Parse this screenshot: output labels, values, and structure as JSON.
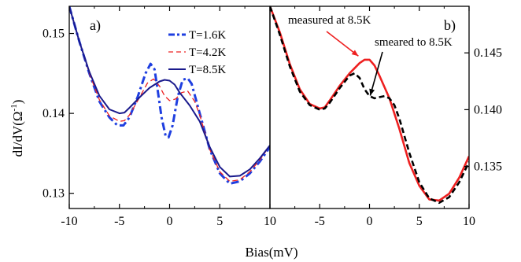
{
  "figure": {
    "xlabel": "Bias(mV)",
    "ylabel": "dI/dV(Ω",
    "ylabel_sup": "-1",
    "ylabel_close": ")"
  },
  "chart_data": [
    {
      "type": "line",
      "panel_label": "a)",
      "xlabel": "Bias(mV)",
      "ylabel": "dI/dV(Ω-1)",
      "xlim": [
        -10,
        10
      ],
      "ylim": [
        0.1281,
        0.1534
      ],
      "xticks": [
        -10,
        -5,
        0,
        5,
        10
      ],
      "xtick_labels": [
        "-10",
        "-5",
        "0",
        "5",
        "10"
      ],
      "yticks": [
        0.13,
        0.14,
        0.15
      ],
      "ytick_labels": [
        "0.13",
        "0.14",
        "0.15"
      ],
      "y_axis_side": "left",
      "grid": false,
      "legend_position": "top-right",
      "series": [
        {
          "name": "T=1.6K",
          "color": "#1f3fe0",
          "style": "dash-dot",
          "points": [
            [
              -10,
              0.1534
            ],
            [
              -9,
              0.149
            ],
            [
              -8,
              0.145
            ],
            [
              -7,
              0.1415
            ],
            [
              -6,
              0.1395
            ],
            [
              -5.2,
              0.1385
            ],
            [
              -4.6,
              0.1385
            ],
            [
              -4,
              0.1395
            ],
            [
              -3.2,
              0.142
            ],
            [
              -2.4,
              0.145
            ],
            [
              -1.9,
              0.1462
            ],
            [
              -1.5,
              0.1455
            ],
            [
              -1.2,
              0.143
            ],
            [
              -0.8,
              0.1395
            ],
            [
              -0.4,
              0.1372
            ],
            [
              -0.1,
              0.137
            ],
            [
              0.3,
              0.1385
            ],
            [
              0.8,
              0.142
            ],
            [
              1.3,
              0.1442
            ],
            [
              1.8,
              0.1444
            ],
            [
              2.2,
              0.1437
            ],
            [
              3,
              0.14
            ],
            [
              4,
              0.1355
            ],
            [
              5,
              0.1325
            ],
            [
              6,
              0.1312
            ],
            [
              7,
              0.1315
            ],
            [
              8,
              0.1325
            ],
            [
              9,
              0.134
            ],
            [
              10,
              0.1358
            ]
          ]
        },
        {
          "name": "T=4.2K",
          "color": "#ee2020",
          "style": "dashed",
          "points": [
            [
              -10,
              0.1534
            ],
            [
              -9,
              0.149
            ],
            [
              -8,
              0.145
            ],
            [
              -7,
              0.1417
            ],
            [
              -6,
              0.1397
            ],
            [
              -5,
              0.139
            ],
            [
              -4.5,
              0.1391
            ],
            [
              -4,
              0.1398
            ],
            [
              -3,
              0.142
            ],
            [
              -2.2,
              0.1438
            ],
            [
              -1.6,
              0.1443
            ],
            [
              -1,
              0.1434
            ],
            [
              -0.5,
              0.1422
            ],
            [
              0,
              0.1416
            ],
            [
              0.6,
              0.1418
            ],
            [
              1.2,
              0.1426
            ],
            [
              1.8,
              0.1428
            ],
            [
              2.5,
              0.1415
            ],
            [
              3,
              0.1398
            ],
            [
              4,
              0.1355
            ],
            [
              5,
              0.1327
            ],
            [
              6,
              0.1315
            ],
            [
              7,
              0.1317
            ],
            [
              8,
              0.1327
            ],
            [
              9,
              0.1342
            ],
            [
              10,
              0.136
            ]
          ]
        },
        {
          "name": "T=8.5K",
          "color": "#1a1a8c",
          "style": "solid",
          "points": [
            [
              -10,
              0.1534
            ],
            [
              -9,
              0.149
            ],
            [
              -8,
              0.1452
            ],
            [
              -7,
              0.1422
            ],
            [
              -6,
              0.1405
            ],
            [
              -5,
              0.14
            ],
            [
              -4.5,
              0.1401
            ],
            [
              -4,
              0.1407
            ],
            [
              -3,
              0.142
            ],
            [
              -2,
              0.1432
            ],
            [
              -1,
              0.144
            ],
            [
              -0.5,
              0.1442
            ],
            [
              0,
              0.1441
            ],
            [
              0.5,
              0.1436
            ],
            [
              1,
              0.1426
            ],
            [
              2,
              0.141
            ],
            [
              3,
              0.139
            ],
            [
              4,
              0.1358
            ],
            [
              5,
              0.1333
            ],
            [
              6,
              0.1321
            ],
            [
              7,
              0.1322
            ],
            [
              8,
              0.133
            ],
            [
              9,
              0.1344
            ],
            [
              10,
              0.136
            ]
          ]
        }
      ]
    },
    {
      "type": "line",
      "panel_label": "b)",
      "xlabel": "Bias(mV)",
      "xlim": [
        -10,
        10
      ],
      "ylim": [
        0.1313,
        0.1491
      ],
      "xticks": [
        -5,
        0,
        5,
        10
      ],
      "xtick_labels": [
        "-5",
        "0",
        "5",
        "10"
      ],
      "yticks": [
        0.135,
        0.14,
        0.145
      ],
      "ytick_labels": [
        "0.135",
        "0.140",
        "0.145"
      ],
      "y_axis_side": "right",
      "grid": false,
      "annotations": [
        {
          "text": "measured at 8.5K",
          "color": "#ee2020",
          "points_to": [
            -0.8,
            0.1443
          ]
        },
        {
          "text": "smeared to 8.5K",
          "color": "#000000",
          "points_to": [
            -0.4,
            0.1411
          ]
        }
      ],
      "series": [
        {
          "name": "measured at 8.5K",
          "color": "#ee2020",
          "style": "solid",
          "points": [
            [
              -10,
              0.1491
            ],
            [
              -9,
              0.1468
            ],
            [
              -8,
              0.144
            ],
            [
              -7,
              0.1418
            ],
            [
              -6,
              0.1405
            ],
            [
              -5,
              0.1401
            ],
            [
              -4.5,
              0.1402
            ],
            [
              -4,
              0.1408
            ],
            [
              -3,
              0.1421
            ],
            [
              -2,
              0.1432
            ],
            [
              -1,
              0.1441
            ],
            [
              -0.5,
              0.1444
            ],
            [
              0,
              0.1444
            ],
            [
              0.5,
              0.1439
            ],
            [
              1,
              0.143
            ],
            [
              2,
              0.141
            ],
            [
              3,
              0.1383
            ],
            [
              4,
              0.1353
            ],
            [
              5,
              0.1333
            ],
            [
              6,
              0.1321
            ],
            [
              7,
              0.132
            ],
            [
              8,
              0.1326
            ],
            [
              9,
              0.134
            ],
            [
              10,
              0.1359
            ]
          ]
        },
        {
          "name": "smeared to 8.5K",
          "color": "#000000",
          "style": "dashed",
          "points": [
            [
              -10,
              0.1491
            ],
            [
              -9,
              0.1466
            ],
            [
              -8,
              0.1438
            ],
            [
              -7,
              0.1416
            ],
            [
              -6,
              0.1404
            ],
            [
              -5,
              0.14
            ],
            [
              -4.5,
              0.1401
            ],
            [
              -4,
              0.1406
            ],
            [
              -3,
              0.1419
            ],
            [
              -2,
              0.143
            ],
            [
              -1.5,
              0.1432
            ],
            [
              -1,
              0.1428
            ],
            [
              -0.5,
              0.1418
            ],
            [
              0,
              0.1412
            ],
            [
              0.5,
              0.141
            ],
            [
              1,
              0.1411
            ],
            [
              1.5,
              0.1412
            ],
            [
              2,
              0.141
            ],
            [
              2.5,
              0.1404
            ],
            [
              3,
              0.1392
            ],
            [
              4,
              0.1362
            ],
            [
              5,
              0.1336
            ],
            [
              6,
              0.1322
            ],
            [
              7,
              0.1318
            ],
            [
              8,
              0.1323
            ],
            [
              9,
              0.1336
            ],
            [
              10,
              0.1354
            ]
          ]
        }
      ]
    }
  ]
}
